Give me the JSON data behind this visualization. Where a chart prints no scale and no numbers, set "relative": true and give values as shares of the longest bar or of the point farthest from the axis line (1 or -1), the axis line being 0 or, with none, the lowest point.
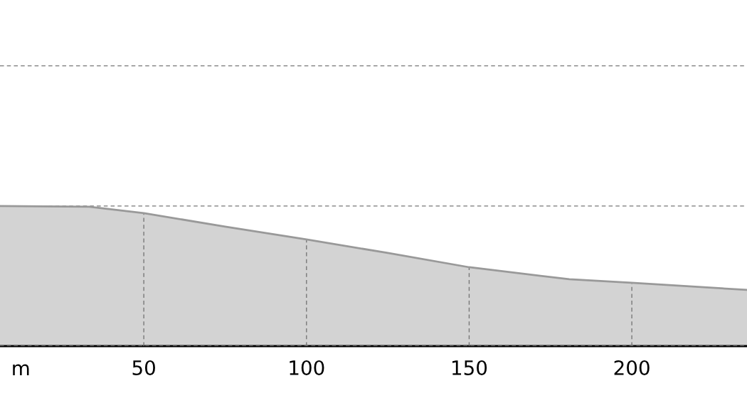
{
  "chart_data": {
    "type": "area",
    "relative": true,
    "xlabel": "m",
    "x": [
      5.8,
      33.2,
      50,
      75,
      100,
      125,
      150,
      180.8,
      200,
      235.4
    ],
    "series": [
      {
        "color": "#d3d3d3",
        "values": [
          1,
          0.995,
          0.949,
          0.853,
          0.761,
          0.665,
          0.563,
          0.477,
          0.452,
          0.401
        ]
      }
    ],
    "xlim": [
      5.8,
      235.4
    ],
    "xticks": [
      50,
      100,
      150,
      200
    ],
    "grid": true
  }
}
